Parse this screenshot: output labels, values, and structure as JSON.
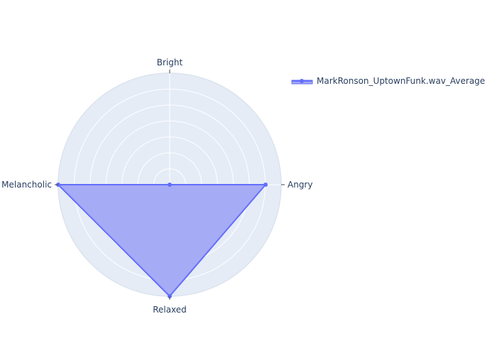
{
  "chart_data": {
    "type": "radar",
    "categories": [
      "Bright",
      "Angry",
      "Relaxed",
      "Melancholic"
    ],
    "series": [
      {
        "name": "MarkRonson_UptownFunk.wav_Average",
        "values": [
          0,
          0.86,
          1.0,
          1.0
        ],
        "color": "#636efa",
        "fill_color": "#a2a8f5"
      }
    ],
    "radial_range": [
      0,
      1
    ],
    "grid": true,
    "legend": "top-right"
  },
  "colors": {
    "polar_background": "#e5ecf6",
    "gridline": "#ffffff",
    "text": "#2a3f5f"
  }
}
